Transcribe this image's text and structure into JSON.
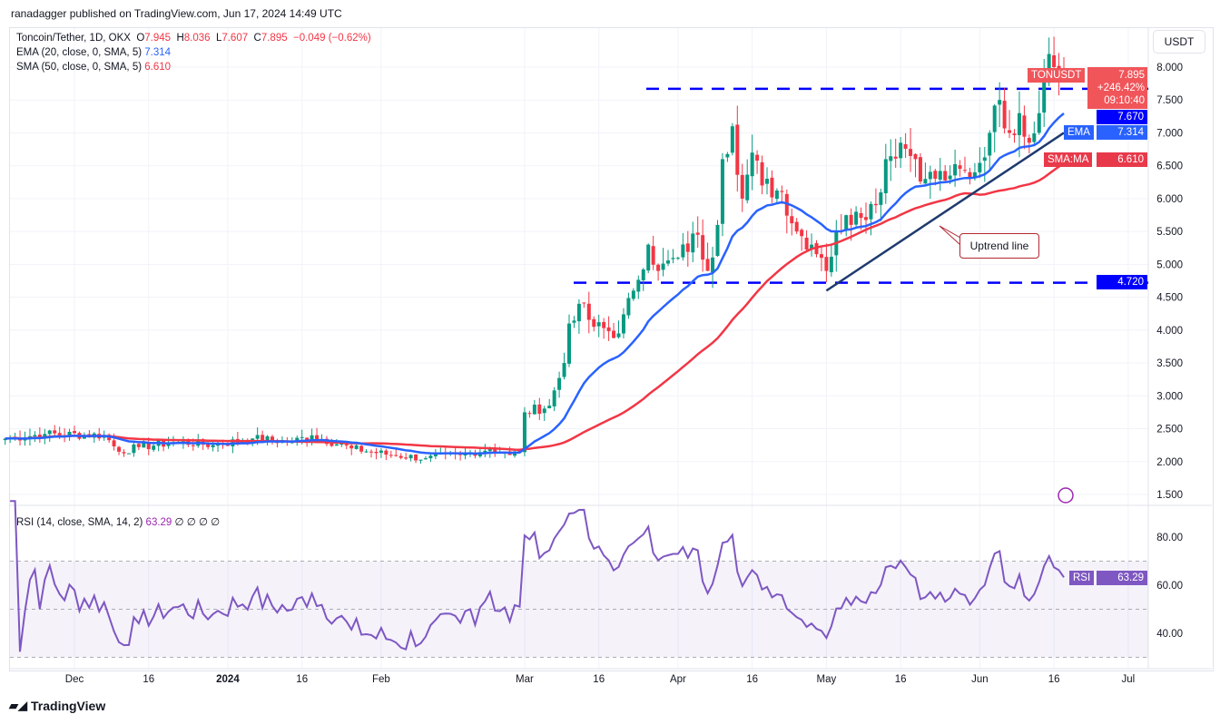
{
  "header": {
    "published": "ranadagger published on TradingView.com, Jun 17, 2024 14:49 UTC"
  },
  "legend": {
    "symbol": "Toncoin/Tether, 1D, OKX",
    "o_label": "O",
    "o": "7.945",
    "h_label": "H",
    "h": "8.036",
    "l_label": "L",
    "l": "7.607",
    "c_label": "C",
    "c": "7.895",
    "change": "−0.049 (−0.62%)",
    "ema_label": "EMA (20, close, 0, SMA, 5)",
    "ema_value": "7.314",
    "sma_label": "SMA (50, close, 0, SMA, 5)",
    "sma_value": "6.610",
    "rsi_label": "RSI (14, close, SMA, 14, 2)",
    "rsi_value": "63.29",
    "rsi_extra": "∅ ∅ ∅ ∅"
  },
  "axis": {
    "currency": "USDT",
    "price_ticks": [
      "8.000",
      "7.500",
      "7.000",
      "6.500",
      "6.000",
      "5.500",
      "5.000",
      "4.500",
      "4.000",
      "3.500",
      "3.000",
      "2.500",
      "2.000",
      "1.500"
    ],
    "rsi_ticks": [
      "80.00",
      "60.00",
      "40.00"
    ],
    "time_ticks": [
      {
        "label": "Dec",
        "day": 14
      },
      {
        "label": "16",
        "day": 29
      },
      {
        "label": "2024",
        "day": 45
      },
      {
        "label": "16",
        "day": 60
      },
      {
        "label": "Feb",
        "day": 76
      },
      {
        "label": "Mar",
        "day": 105
      },
      {
        "label": "16",
        "day": 120
      },
      {
        "label": "Apr",
        "day": 136
      },
      {
        "label": "16",
        "day": 151
      },
      {
        "label": "May",
        "day": 166
      },
      {
        "label": "16",
        "day": 181
      },
      {
        "label": "Jun",
        "day": 197
      },
      {
        "label": "16",
        "day": 212
      },
      {
        "label": "Jul",
        "day": 227
      }
    ]
  },
  "tags": {
    "symbol": "TONUSDT",
    "price": "7.895",
    "pct": "+246.42%",
    "countdown": "09:10:40",
    "resistance": "7.670",
    "ema_name": "EMA",
    "ema": "7.314",
    "sma_name": "SMA:MA",
    "sma": "6.610",
    "support": "4.720",
    "rsi_name": "RSI",
    "rsi": "63.29"
  },
  "annotation": {
    "uptrend": "Uptrend line"
  },
  "colors": {
    "up": "#089981",
    "down": "#f23645",
    "ema": "#2962ff",
    "sma": "#f23645",
    "rsi": "#7e57c2",
    "lines": "#0000ff",
    "trend": "#1e3a6e"
  },
  "brand": "TradingView",
  "chart_data": {
    "type": "candlestick",
    "title": "Toncoin/Tether 1D OKX",
    "ylim": [
      1.3,
      8.4
    ],
    "levels": {
      "resistance": 7.67,
      "support": 4.72
    },
    "keypoints_day_close": [
      [
        0,
        2.35
      ],
      [
        8,
        2.42
      ],
      [
        20,
        2.4
      ],
      [
        23,
        2.15
      ],
      [
        27,
        2.22
      ],
      [
        35,
        2.3
      ],
      [
        42,
        2.25
      ],
      [
        50,
        2.35
      ],
      [
        58,
        2.3
      ],
      [
        62,
        2.4
      ],
      [
        70,
        2.2
      ],
      [
        78,
        2.1
      ],
      [
        85,
        2.05
      ],
      [
        92,
        2.1
      ],
      [
        98,
        2.2
      ],
      [
        102,
        2.1
      ],
      [
        104,
        2.15
      ],
      [
        105,
        2.75
      ],
      [
        110,
        2.85
      ],
      [
        113,
        3.5
      ],
      [
        114,
        4.1
      ],
      [
        116,
        4.4
      ],
      [
        119,
        4.05
      ],
      [
        124,
        3.95
      ],
      [
        127,
        4.6
      ],
      [
        130,
        5.3
      ],
      [
        132,
        4.9
      ],
      [
        136,
        5.1
      ],
      [
        140,
        5.45
      ],
      [
        142,
        4.9
      ],
      [
        144,
        5.6
      ],
      [
        145,
        6.6
      ],
      [
        147,
        7.1
      ],
      [
        149,
        6.0
      ],
      [
        151,
        6.7
      ],
      [
        153,
        6.2
      ],
      [
        157,
        6.1
      ],
      [
        160,
        5.5
      ],
      [
        163,
        5.3
      ],
      [
        165,
        5.1
      ],
      [
        166,
        4.9
      ],
      [
        168,
        5.5
      ],
      [
        172,
        5.8
      ],
      [
        176,
        5.9
      ],
      [
        178,
        6.6
      ],
      [
        181,
        6.85
      ],
      [
        184,
        6.6
      ],
      [
        186,
        6.3
      ],
      [
        191,
        6.35
      ],
      [
        196,
        6.4
      ],
      [
        199,
        7.0
      ],
      [
        201,
        7.5
      ],
      [
        203,
        7.0
      ],
      [
        205,
        7.3
      ],
      [
        207,
        6.85
      ],
      [
        209,
        7.3
      ],
      [
        210,
        7.8
      ],
      [
        211,
        8.2
      ],
      [
        212,
        8.0
      ],
      [
        213,
        7.95
      ],
      [
        214,
        7.895
      ]
    ],
    "uptrend_line": [
      [
        166,
        4.6
      ],
      [
        214,
        7.0
      ]
    ],
    "rsi_levels": [
      70,
      50,
      30
    ],
    "rsi_last": 63.29
  }
}
